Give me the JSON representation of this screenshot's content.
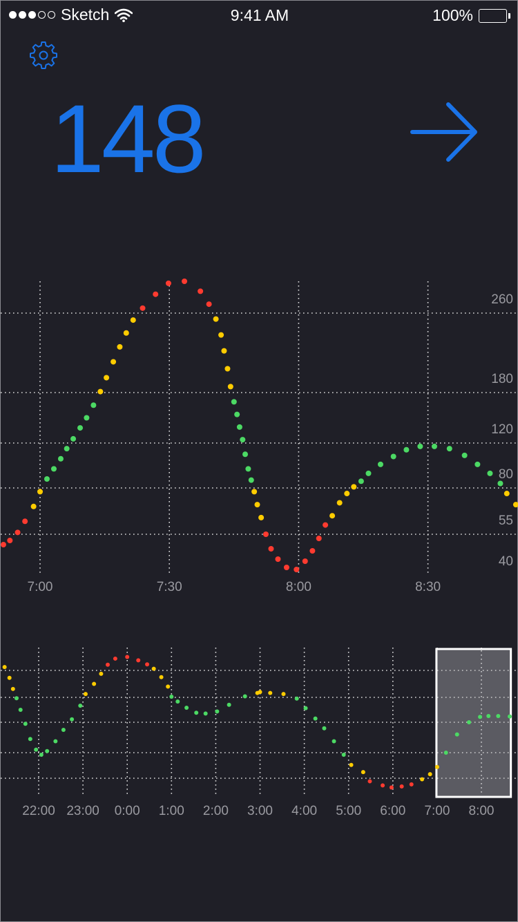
{
  "status_bar": {
    "carrier": "Sketch",
    "time": "9:41 AM",
    "battery": "100%",
    "signal_bars_filled": 3,
    "signal_bars_total": 5
  },
  "header": {
    "settings_icon": "gear-icon",
    "current_value": "148",
    "trend_icon": "arrow-right-icon"
  },
  "colors": {
    "background": "#1f1f27",
    "accent": "#1a73e8",
    "in_range": "#4cd964",
    "warning": "#ffcc00",
    "alert": "#ff3b30",
    "grid": "#ffffff",
    "tick_label": "#9a9aa0"
  },
  "chart_data": [
    {
      "type": "scatter",
      "x_unit": "time",
      "x_ticks": [
        "7:00",
        "7:30",
        "8:00",
        "8:30"
      ],
      "x_tick_minutes": [
        0,
        30,
        60,
        90
      ],
      "xlim": [
        -9,
        111
      ],
      "y_ticks": [
        "260",
        "180",
        "120",
        "80",
        "55",
        "40"
      ],
      "y_tick_values": [
        260,
        180,
        120,
        80,
        55,
        40
      ],
      "y_scale": "nonlinear (labelled gridlines)",
      "grid": true,
      "title": "",
      "xlabel": "",
      "ylabel": "",
      "points": [
        {
          "t": -8.5,
          "y": 50,
          "level": "alert"
        },
        {
          "t": -7,
          "y": 52,
          "level": "alert"
        },
        {
          "t": -5.2,
          "y": 56,
          "level": "alert"
        },
        {
          "t": -3.5,
          "y": 62,
          "level": "alert"
        },
        {
          "t": -1.5,
          "y": 70,
          "level": "warning"
        },
        {
          "t": 0,
          "y": 78,
          "level": "warning"
        },
        {
          "t": 1.6,
          "y": 88,
          "level": "in_range"
        },
        {
          "t": 3.2,
          "y": 97,
          "level": "in_range"
        },
        {
          "t": 4.8,
          "y": 106,
          "level": "in_range"
        },
        {
          "t": 6.2,
          "y": 115,
          "level": "in_range"
        },
        {
          "t": 7.7,
          "y": 125,
          "level": "in_range"
        },
        {
          "t": 9.3,
          "y": 138,
          "level": "in_range"
        },
        {
          "t": 10.8,
          "y": 150,
          "level": "in_range"
        },
        {
          "t": 12.4,
          "y": 165,
          "level": "in_range"
        },
        {
          "t": 14,
          "y": 181,
          "level": "warning"
        },
        {
          "t": 15.4,
          "y": 195,
          "level": "warning"
        },
        {
          "t": 17,
          "y": 211,
          "level": "warning"
        },
        {
          "t": 18.5,
          "y": 226,
          "level": "warning"
        },
        {
          "t": 20,
          "y": 240,
          "level": "warning"
        },
        {
          "t": 21.6,
          "y": 253,
          "level": "warning"
        },
        {
          "t": 23.8,
          "y": 265,
          "level": "alert"
        },
        {
          "t": 26.8,
          "y": 279,
          "level": "alert"
        },
        {
          "t": 29.8,
          "y": 290,
          "level": "alert"
        },
        {
          "t": 33.5,
          "y": 292,
          "level": "alert"
        },
        {
          "t": 37.2,
          "y": 282,
          "level": "alert"
        },
        {
          "t": 39.2,
          "y": 269,
          "level": "alert"
        },
        {
          "t": 40.8,
          "y": 254,
          "level": "warning"
        },
        {
          "t": 42,
          "y": 238,
          "level": "warning"
        },
        {
          "t": 42.7,
          "y": 222,
          "level": "warning"
        },
        {
          "t": 43.5,
          "y": 204,
          "level": "warning"
        },
        {
          "t": 44.2,
          "y": 186,
          "level": "warning"
        },
        {
          "t": 45,
          "y": 169,
          "level": "in_range"
        },
        {
          "t": 45.7,
          "y": 154,
          "level": "in_range"
        },
        {
          "t": 46.3,
          "y": 139,
          "level": "in_range"
        },
        {
          "t": 47,
          "y": 124,
          "level": "in_range"
        },
        {
          "t": 47.6,
          "y": 110,
          "level": "in_range"
        },
        {
          "t": 48.3,
          "y": 97,
          "level": "in_range"
        },
        {
          "t": 49,
          "y": 87,
          "level": "in_range"
        },
        {
          "t": 49.7,
          "y": 78,
          "level": "warning"
        },
        {
          "t": 50.4,
          "y": 71,
          "level": "warning"
        },
        {
          "t": 51.3,
          "y": 64,
          "level": "warning"
        },
        {
          "t": 52.4,
          "y": 55,
          "level": "alert"
        },
        {
          "t": 53.6,
          "y": 48,
          "level": "alert"
        },
        {
          "t": 55.2,
          "y": 43,
          "level": "alert"
        },
        {
          "t": 57.2,
          "y": 39,
          "level": "alert"
        },
        {
          "t": 59.5,
          "y": 38,
          "level": "alert"
        },
        {
          "t": 61.5,
          "y": 42,
          "level": "alert"
        },
        {
          "t": 63.2,
          "y": 47,
          "level": "alert"
        },
        {
          "t": 64.7,
          "y": 53,
          "level": "alert"
        },
        {
          "t": 66.2,
          "y": 60,
          "level": "alert"
        },
        {
          "t": 67.8,
          "y": 65,
          "level": "warning"
        },
        {
          "t": 69.5,
          "y": 72,
          "level": "warning"
        },
        {
          "t": 71.2,
          "y": 77,
          "level": "warning"
        },
        {
          "t": 72.8,
          "y": 81,
          "level": "warning"
        },
        {
          "t": 74.5,
          "y": 86,
          "level": "in_range"
        },
        {
          "t": 76.2,
          "y": 93,
          "level": "in_range"
        },
        {
          "t": 79,
          "y": 101,
          "level": "in_range"
        },
        {
          "t": 82,
          "y": 108,
          "level": "in_range"
        },
        {
          "t": 85,
          "y": 114,
          "level": "in_range"
        },
        {
          "t": 88.2,
          "y": 117,
          "level": "in_range"
        },
        {
          "t": 91.5,
          "y": 117,
          "level": "in_range"
        },
        {
          "t": 95,
          "y": 115,
          "level": "in_range"
        },
        {
          "t": 98.5,
          "y": 109,
          "level": "in_range"
        },
        {
          "t": 101.5,
          "y": 101,
          "level": "in_range"
        },
        {
          "t": 104.4,
          "y": 93,
          "level": "in_range"
        },
        {
          "t": 106.8,
          "y": 84,
          "level": "in_range"
        },
        {
          "t": 108.3,
          "y": 77,
          "level": "warning"
        },
        {
          "t": 110.4,
          "y": 71,
          "level": "warning"
        }
      ]
    },
    {
      "type": "scatter",
      "x_unit": "time",
      "x_ticks": [
        "22:00",
        "23:00",
        "0:00",
        "1:00",
        "2:00",
        "3:00",
        "4:00",
        "5:00",
        "6:00",
        "7:00",
        "8:00"
      ],
      "x_tick_hours": [
        0,
        1,
        2,
        3,
        4,
        5,
        6,
        7,
        8,
        9,
        10
      ],
      "xlim": [
        -0.85,
        10.85
      ],
      "y_tick_values": [
        260,
        180,
        120,
        80,
        55
      ],
      "grid": true,
      "title": "",
      "xlabel": "",
      "ylabel": "",
      "selection": {
        "from_hour": 9.0,
        "to_hour": 10.65
      },
      "points": [
        {
          "h": -0.77,
          "y": 270,
          "level": "warning"
        },
        {
          "h": -0.66,
          "y": 238,
          "level": "warning"
        },
        {
          "h": -0.58,
          "y": 205,
          "level": "warning"
        },
        {
          "h": -0.5,
          "y": 178,
          "level": "in_range"
        },
        {
          "h": -0.41,
          "y": 150,
          "level": "in_range"
        },
        {
          "h": -0.3,
          "y": 118,
          "level": "in_range"
        },
        {
          "h": -0.19,
          "y": 98,
          "level": "in_range"
        },
        {
          "h": -0.06,
          "y": 84,
          "level": "in_range"
        },
        {
          "h": 0.06,
          "y": 78,
          "level": "in_range"
        },
        {
          "h": 0.19,
          "y": 82,
          "level": "in_range"
        },
        {
          "h": 0.38,
          "y": 95,
          "level": "in_range"
        },
        {
          "h": 0.56,
          "y": 110,
          "level": "in_range"
        },
        {
          "h": 0.75,
          "y": 127,
          "level": "in_range"
        },
        {
          "h": 0.94,
          "y": 160,
          "level": "in_range"
        },
        {
          "h": 1.06,
          "y": 190,
          "level": "warning"
        },
        {
          "h": 1.25,
          "y": 220,
          "level": "warning"
        },
        {
          "h": 1.41,
          "y": 250,
          "level": "warning"
        },
        {
          "h": 1.56,
          "y": 277,
          "level": "alert"
        },
        {
          "h": 1.73,
          "y": 295,
          "level": "alert"
        },
        {
          "h": 2.0,
          "y": 300,
          "level": "alert"
        },
        {
          "h": 2.25,
          "y": 290,
          "level": "alert"
        },
        {
          "h": 2.45,
          "y": 278,
          "level": "alert"
        },
        {
          "h": 2.6,
          "y": 265,
          "level": "warning"
        },
        {
          "h": 2.77,
          "y": 240,
          "level": "warning"
        },
        {
          "h": 2.92,
          "y": 212,
          "level": "warning"
        },
        {
          "h": 3.0,
          "y": 182,
          "level": "in_range"
        },
        {
          "h": 3.14,
          "y": 170,
          "level": "in_range"
        },
        {
          "h": 3.34,
          "y": 155,
          "level": "in_range"
        },
        {
          "h": 3.56,
          "y": 143,
          "level": "in_range"
        },
        {
          "h": 3.77,
          "y": 141,
          "level": "in_range"
        },
        {
          "h": 4.03,
          "y": 146,
          "level": "in_range"
        },
        {
          "h": 4.3,
          "y": 162,
          "level": "in_range"
        },
        {
          "h": 4.66,
          "y": 183,
          "level": "in_range"
        },
        {
          "h": 4.94,
          "y": 193,
          "level": "warning"
        },
        {
          "h": 5.0,
          "y": 196,
          "level": "warning"
        },
        {
          "h": 5.23,
          "y": 193,
          "level": "warning"
        },
        {
          "h": 5.53,
          "y": 190,
          "level": "warning"
        },
        {
          "h": 5.83,
          "y": 177,
          "level": "in_range"
        },
        {
          "h": 6.03,
          "y": 154,
          "level": "in_range"
        },
        {
          "h": 6.25,
          "y": 129,
          "level": "in_range"
        },
        {
          "h": 6.45,
          "y": 112,
          "level": "in_range"
        },
        {
          "h": 6.67,
          "y": 95,
          "level": "in_range"
        },
        {
          "h": 6.89,
          "y": 78,
          "level": "in_range"
        },
        {
          "h": 7.06,
          "y": 68,
          "level": "warning"
        },
        {
          "h": 7.33,
          "y": 61,
          "level": "warning"
        },
        {
          "h": 7.48,
          "y": 52,
          "level": "alert"
        },
        {
          "h": 7.77,
          "y": 48,
          "level": "alert"
        },
        {
          "h": 7.97,
          "y": 46,
          "level": "alert"
        },
        {
          "h": 8.2,
          "y": 47,
          "level": "alert"
        },
        {
          "h": 8.42,
          "y": 49,
          "level": "alert"
        },
        {
          "h": 8.66,
          "y": 54,
          "level": "warning"
        },
        {
          "h": 8.84,
          "y": 59,
          "level": "warning"
        },
        {
          "h": 9.0,
          "y": 66,
          "level": "warning"
        },
        {
          "h": 9.2,
          "y": 80,
          "level": "in_range"
        },
        {
          "h": 9.45,
          "y": 104,
          "level": "in_range"
        },
        {
          "h": 9.72,
          "y": 120,
          "level": "in_range"
        },
        {
          "h": 9.97,
          "y": 133,
          "level": "in_range"
        },
        {
          "h": 10.16,
          "y": 135,
          "level": "in_range"
        },
        {
          "h": 10.38,
          "y": 135,
          "level": "in_range"
        },
        {
          "h": 10.64,
          "y": 134,
          "level": "in_range"
        },
        {
          "h": 10.97,
          "y": 136,
          "level": "in_range"
        }
      ]
    }
  ]
}
